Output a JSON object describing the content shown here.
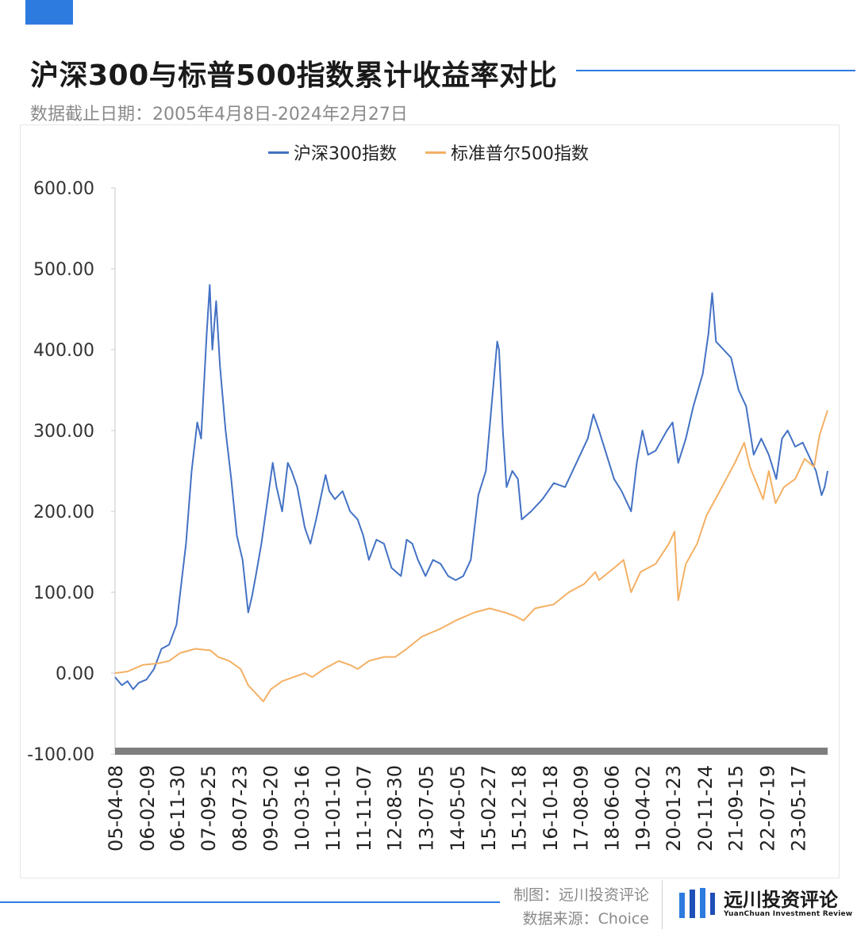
{
  "header": {
    "title": "沪深300与标普500指数累计收益率对比",
    "subtitle": "数据截止日期：2005年4月8日-2024年2月27日"
  },
  "footer": {
    "maker": "制图：远川投资评论",
    "source": "数据来源：Choice",
    "logo_cn": "远川投资评论",
    "logo_en": "YuanChuan Investment Review"
  },
  "colors": {
    "accent": "#2e7be0",
    "hs300": "#4472c4",
    "sp500": "#f4b064",
    "baseline": "#7f7f7f"
  },
  "chart_data": {
    "type": "line",
    "title": "沪深300与标普500指数累计收益率对比",
    "xlabel": "",
    "ylabel": "",
    "ylim": [
      -100,
      600
    ],
    "yticks": [
      "600.00",
      "500.00",
      "400.00",
      "300.00",
      "200.00",
      "100.00",
      "0.00",
      "-100.00"
    ],
    "xticks": [
      "05-04-08",
      "06-02-09",
      "06-11-30",
      "07-09-25",
      "08-07-23",
      "09-05-20",
      "10-03-16",
      "11-01-10",
      "11-11-07",
      "12-08-30",
      "13-07-05",
      "14-05-05",
      "15-02-27",
      "15-12-18",
      "16-10-18",
      "17-08-09",
      "18-06-06",
      "19-04-02",
      "20-01-23",
      "20-11-24",
      "21-09-15",
      "22-07-19",
      "23-05-17"
    ],
    "x_range": [
      2005.27,
      2024.16
    ],
    "x_tick_years": [
      2005.27,
      2006.11,
      2006.91,
      2007.73,
      2008.56,
      2009.38,
      2010.21,
      2011.03,
      2011.85,
      2012.66,
      2013.51,
      2014.34,
      2015.16,
      2015.97,
      2016.8,
      2017.61,
      2018.43,
      2019.25,
      2020.06,
      2020.9,
      2021.71,
      2022.55,
      2023.37
    ],
    "series": [
      {
        "name": "沪深300指数",
        "points": [
          [
            2005.27,
            -5
          ],
          [
            2005.45,
            -15
          ],
          [
            2005.6,
            -10
          ],
          [
            2005.75,
            -20
          ],
          [
            2005.9,
            -12
          ],
          [
            2006.1,
            -8
          ],
          [
            2006.3,
            5
          ],
          [
            2006.5,
            30
          ],
          [
            2006.7,
            35
          ],
          [
            2006.9,
            60
          ],
          [
            2007.0,
            100
          ],
          [
            2007.15,
            160
          ],
          [
            2007.3,
            250
          ],
          [
            2007.45,
            310
          ],
          [
            2007.55,
            290
          ],
          [
            2007.7,
            420
          ],
          [
            2007.78,
            480
          ],
          [
            2007.85,
            400
          ],
          [
            2007.95,
            460
          ],
          [
            2008.05,
            380
          ],
          [
            2008.2,
            300
          ],
          [
            2008.35,
            240
          ],
          [
            2008.5,
            170
          ],
          [
            2008.65,
            140
          ],
          [
            2008.8,
            75
          ],
          [
            2008.9,
            95
          ],
          [
            2009.0,
            120
          ],
          [
            2009.15,
            160
          ],
          [
            2009.3,
            210
          ],
          [
            2009.45,
            260
          ],
          [
            2009.55,
            230
          ],
          [
            2009.7,
            200
          ],
          [
            2009.85,
            260
          ],
          [
            2009.95,
            250
          ],
          [
            2010.1,
            230
          ],
          [
            2010.3,
            180
          ],
          [
            2010.45,
            160
          ],
          [
            2010.6,
            190
          ],
          [
            2010.85,
            245
          ],
          [
            2010.95,
            225
          ],
          [
            2011.1,
            215
          ],
          [
            2011.3,
            225
          ],
          [
            2011.5,
            200
          ],
          [
            2011.7,
            190
          ],
          [
            2011.85,
            170
          ],
          [
            2012.0,
            140
          ],
          [
            2012.2,
            165
          ],
          [
            2012.4,
            160
          ],
          [
            2012.6,
            130
          ],
          [
            2012.85,
            120
          ],
          [
            2013.0,
            165
          ],
          [
            2013.15,
            160
          ],
          [
            2013.3,
            140
          ],
          [
            2013.5,
            120
          ],
          [
            2013.7,
            140
          ],
          [
            2013.9,
            135
          ],
          [
            2014.1,
            120
          ],
          [
            2014.3,
            115
          ],
          [
            2014.5,
            120
          ],
          [
            2014.7,
            140
          ],
          [
            2014.9,
            220
          ],
          [
            2015.1,
            250
          ],
          [
            2015.25,
            330
          ],
          [
            2015.4,
            410
          ],
          [
            2015.45,
            400
          ],
          [
            2015.55,
            300
          ],
          [
            2015.65,
            230
          ],
          [
            2015.8,
            250
          ],
          [
            2015.95,
            240
          ],
          [
            2016.05,
            190
          ],
          [
            2016.3,
            200
          ],
          [
            2016.6,
            215
          ],
          [
            2016.9,
            235
          ],
          [
            2017.2,
            230
          ],
          [
            2017.5,
            260
          ],
          [
            2017.8,
            290
          ],
          [
            2017.95,
            320
          ],
          [
            2018.1,
            300
          ],
          [
            2018.3,
            270
          ],
          [
            2018.5,
            240
          ],
          [
            2018.7,
            225
          ],
          [
            2018.95,
            200
          ],
          [
            2019.1,
            260
          ],
          [
            2019.25,
            300
          ],
          [
            2019.4,
            270
          ],
          [
            2019.6,
            275
          ],
          [
            2019.9,
            300
          ],
          [
            2020.05,
            310
          ],
          [
            2020.2,
            260
          ],
          [
            2020.4,
            290
          ],
          [
            2020.6,
            330
          ],
          [
            2020.85,
            370
          ],
          [
            2021.0,
            420
          ],
          [
            2021.1,
            470
          ],
          [
            2021.2,
            410
          ],
          [
            2021.4,
            400
          ],
          [
            2021.6,
            390
          ],
          [
            2021.8,
            350
          ],
          [
            2022.0,
            330
          ],
          [
            2022.2,
            270
          ],
          [
            2022.4,
            290
          ],
          [
            2022.6,
            270
          ],
          [
            2022.8,
            240
          ],
          [
            2022.95,
            290
          ],
          [
            2023.1,
            300
          ],
          [
            2023.3,
            280
          ],
          [
            2023.5,
            285
          ],
          [
            2023.7,
            265
          ],
          [
            2023.85,
            250
          ],
          [
            2024.0,
            220
          ],
          [
            2024.08,
            230
          ],
          [
            2024.16,
            250
          ]
        ]
      },
      {
        "name": "标准普尔500指数",
        "points": [
          [
            2005.27,
            0
          ],
          [
            2005.6,
            2
          ],
          [
            2006.0,
            10
          ],
          [
            2006.4,
            12
          ],
          [
            2006.7,
            15
          ],
          [
            2007.0,
            25
          ],
          [
            2007.4,
            30
          ],
          [
            2007.8,
            28
          ],
          [
            2008.0,
            20
          ],
          [
            2008.3,
            15
          ],
          [
            2008.6,
            5
          ],
          [
            2008.8,
            -15
          ],
          [
            2009.0,
            -25
          ],
          [
            2009.2,
            -35
          ],
          [
            2009.4,
            -20
          ],
          [
            2009.7,
            -10
          ],
          [
            2010.0,
            -5
          ],
          [
            2010.3,
            0
          ],
          [
            2010.5,
            -5
          ],
          [
            2010.8,
            5
          ],
          [
            2011.2,
            15
          ],
          [
            2011.5,
            10
          ],
          [
            2011.7,
            5
          ],
          [
            2012.0,
            15
          ],
          [
            2012.4,
            20
          ],
          [
            2012.7,
            20
          ],
          [
            2013.0,
            30
          ],
          [
            2013.4,
            45
          ],
          [
            2013.9,
            55
          ],
          [
            2014.3,
            65
          ],
          [
            2014.8,
            75
          ],
          [
            2015.2,
            80
          ],
          [
            2015.6,
            75
          ],
          [
            2015.9,
            70
          ],
          [
            2016.1,
            65
          ],
          [
            2016.4,
            80
          ],
          [
            2016.9,
            85
          ],
          [
            2017.3,
            100
          ],
          [
            2017.7,
            110
          ],
          [
            2018.0,
            125
          ],
          [
            2018.1,
            115
          ],
          [
            2018.5,
            130
          ],
          [
            2018.75,
            140
          ],
          [
            2018.95,
            100
          ],
          [
            2019.2,
            125
          ],
          [
            2019.6,
            135
          ],
          [
            2019.95,
            160
          ],
          [
            2020.1,
            175
          ],
          [
            2020.2,
            90
          ],
          [
            2020.4,
            135
          ],
          [
            2020.7,
            160
          ],
          [
            2020.95,
            195
          ],
          [
            2021.3,
            225
          ],
          [
            2021.7,
            260
          ],
          [
            2021.95,
            285
          ],
          [
            2022.1,
            255
          ],
          [
            2022.45,
            215
          ],
          [
            2022.6,
            250
          ],
          [
            2022.78,
            210
          ],
          [
            2023.0,
            230
          ],
          [
            2023.3,
            240
          ],
          [
            2023.55,
            265
          ],
          [
            2023.8,
            255
          ],
          [
            2023.95,
            295
          ],
          [
            2024.16,
            325
          ]
        ]
      }
    ]
  }
}
